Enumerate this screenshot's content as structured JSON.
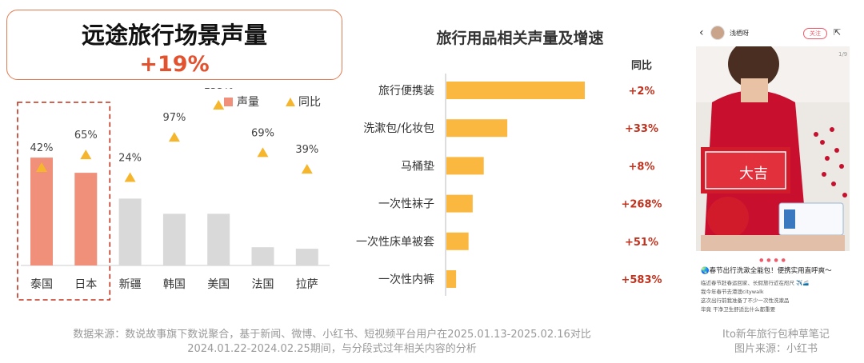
{
  "header": {
    "title": "远途旅行场景声量",
    "growth": "+19%"
  },
  "chart_data": [
    {
      "type": "bar",
      "categories": [
        "泰国",
        "日本",
        "新疆",
        "韩国",
        "美国",
        "法国",
        "拉萨"
      ],
      "series": [
        {
          "name": "声量",
          "values": [
            71,
            61,
            44,
            34,
            34,
            12,
            11
          ]
        },
        {
          "name": "同比",
          "values": [
            42,
            65,
            24,
            97,
            155,
            69,
            39
          ],
          "unit": "%",
          "labels": [
            "42%",
            "65%",
            "24%",
            "97%",
            "155%",
            "69%",
            "39%"
          ]
        }
      ],
      "highlighted_categories": [
        "泰国",
        "日本"
      ],
      "legend": "top-right",
      "colors": {
        "highlight_bar": "#f0907a",
        "bar": "#d9d9d9",
        "triangle": "#f5b62e"
      }
    },
    {
      "type": "bar",
      "orientation": "horizontal",
      "title": "旅行用品相关声量及增速",
      "categories": [
        "旅行便携装",
        "洗漱包/化妆包",
        "马桶垫",
        "一次性袜子",
        "一次性床单被套",
        "一次性内裤"
      ],
      "series": [
        {
          "name": "声量",
          "values": [
            100,
            44,
            27,
            19,
            16,
            7
          ]
        },
        {
          "name": "同比",
          "labels": [
            "+2%",
            "+33%",
            "+8%",
            "+268%",
            "+51%",
            "+583%"
          ]
        }
      ],
      "growth_header": "同比",
      "colors": {
        "bar": "#fbb840",
        "growth_text": "#c0321e"
      }
    }
  ],
  "footer": {
    "line1": "数据来源：数说故事旗下数说聚合，基于新闻、微博、小红书、短视频平台用户在2025.01.13-2025.02.16对比",
    "line2": "2024.01.22-2024.02.25期间，与分段式过年相关内容的分析"
  },
  "phone": {
    "username": "浅栖呀",
    "follow_label": "关注",
    "page_indicator": "1/9",
    "post_title": "🌏春节出行洗漱全能包！便携实用直呼爽～",
    "post_lines": [
      "临近春节赶春运回家、长假旅行近在咫尺 ✈️🚄",
      "我今年春节去港澳citywalk",
      "这次出行前我准备了不少一次性洗漱品",
      "毕竟 干净卫生舒适比什么都重要"
    ],
    "sign_text": "大吉"
  },
  "caption": {
    "line1": "Ito新年旅行包种草笔记",
    "line2": "图片来源：小红书"
  }
}
